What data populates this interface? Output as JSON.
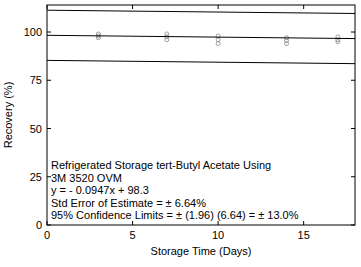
{
  "chart_data": {
    "type": "scatter",
    "x_label": "Storage Time (Days)",
    "y_label": "Recovery (%)",
    "annotations": [
      "Refrigerated Storage tert-Butyl Acetate Using",
      "3M 3520 OVM",
      "y = - 0.0947x + 98.3",
      "Std Error of Estimate = ± 6.64%",
      "95% Confidence Limits = ± (1.96) (6.64) = ± 13.0%"
    ],
    "xlim": [
      0,
      18
    ],
    "xticks": [
      0,
      5,
      10,
      15
    ],
    "ylim": [
      0,
      114
    ],
    "yticks": [
      0,
      25,
      50,
      75,
      100
    ],
    "series": [
      {
        "type": "scatter",
        "marker": "circle",
        "color": "#888888",
        "x": [
          3,
          3,
          3,
          7,
          7,
          7,
          10,
          10,
          10,
          14,
          14,
          14,
          17,
          17,
          17
        ],
        "values": [
          97,
          98,
          99,
          96,
          97.5,
          99,
          94,
          96,
          98,
          94,
          95.5,
          97,
          95,
          96,
          97.5
        ]
      },
      {
        "type": "line",
        "line_style": "solid",
        "color": "#000000",
        "x": [
          0,
          18
        ],
        "values": [
          98.3,
          96.6
        ]
      },
      {
        "type": "line",
        "line_style": "solid",
        "color": "#000000",
        "x": [
          0,
          18
        ],
        "values": [
          111.3,
          109.6
        ]
      },
      {
        "type": "line",
        "line_style": "solid",
        "color": "#000000",
        "x": [
          0,
          18
        ],
        "values": [
          85.3,
          83.6
        ]
      }
    ]
  }
}
